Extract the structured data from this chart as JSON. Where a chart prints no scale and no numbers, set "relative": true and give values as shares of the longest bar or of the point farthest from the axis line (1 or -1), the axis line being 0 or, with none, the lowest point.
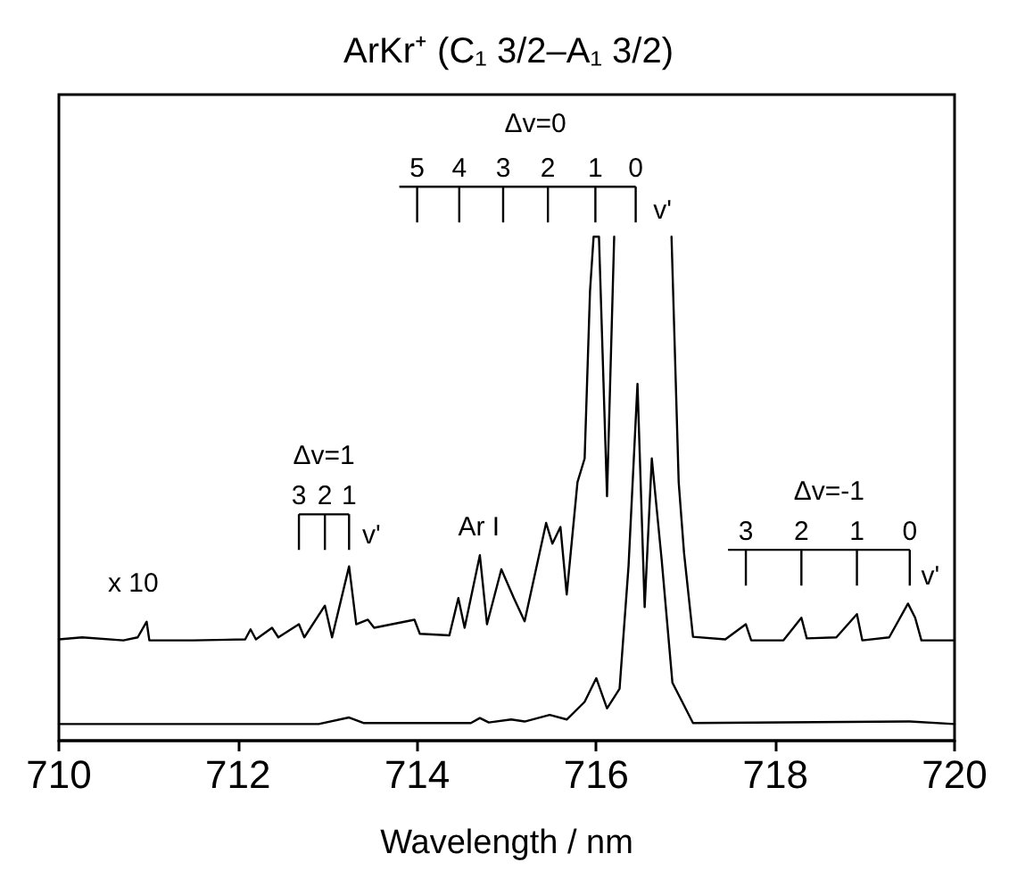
{
  "chart_data": {
    "type": "line",
    "title": "ArKr⁺ (C₁ 3/2–A₁ 3/2)",
    "xlabel": "Wavelength / nm",
    "xlim": [
      710,
      720
    ],
    "xticks": [
      710,
      712,
      714,
      716,
      718,
      720
    ],
    "relative": true,
    "grid": false,
    "marker": "none",
    "line_style": "solid",
    "series": [
      {
        "color": "#000000",
        "x": [
          710,
          710.26,
          710.72,
          710.88,
          710.98,
          711.01,
          711.5,
          712.08,
          712.14,
          712.2,
          712.38,
          712.45,
          712.68,
          712.74,
          712.97,
          713.05,
          713.24,
          713.32,
          713.45,
          713.52,
          713.97,
          714.03,
          714.36,
          714.46,
          714.53,
          714.7,
          714.78,
          714.94,
          715.08,
          715.2,
          715.44,
          715.51,
          715.6,
          715.67,
          715.79,
          715.87,
          715.93,
          715.97,
          716.03,
          716.12,
          716.2,
          716.8,
          716.84,
          716.92,
          716.98,
          717.08,
          717.44,
          717.67,
          717.73,
          718.09,
          718.29,
          718.35,
          718.68,
          718.91,
          718.97,
          719.27,
          719.48,
          719.56,
          719.63,
          720
        ],
        "values": [
          0.201,
          0.205,
          0.199,
          0.205,
          0.236,
          0.199,
          0.199,
          0.201,
          0.221,
          0.201,
          0.224,
          0.205,
          0.231,
          0.205,
          0.268,
          0.205,
          0.346,
          0.231,
          0.24,
          0.224,
          0.24,
          0.212,
          0.209,
          0.283,
          0.224,
          0.368,
          0.231,
          0.34,
          0.283,
          0.237,
          0.432,
          0.391,
          0.424,
          0.29,
          0.513,
          0.56,
          0.892,
          1,
          1,
          0.485,
          1,
          null,
          1,
          0.513,
          0.372,
          0.206,
          0.201,
          0.231,
          0.199,
          0.199,
          0.244,
          0.203,
          0.205,
          0.251,
          0.199,
          0.205,
          0.272,
          0.244,
          0.199,
          0.199
        ]
      },
      {
        "color": "#000000",
        "x": [
          710,
          712.9,
          713.24,
          713.4,
          714.6,
          714.7,
          714.8,
          715.05,
          715.2,
          715.48,
          715.67,
          715.87,
          716.0,
          716.12,
          716.26,
          716.36,
          716.46,
          716.54,
          716.62,
          716.73,
          716.85,
          717.08,
          719.5,
          720
        ],
        "values": [
          0.033,
          0.033,
          0.046,
          0.035,
          0.035,
          0.045,
          0.036,
          0.042,
          0.038,
          0.051,
          0.042,
          0.077,
          0.124,
          0.064,
          0.103,
          0.346,
          0.708,
          0.265,
          0.56,
          0.359,
          0.115,
          0.035,
          0.038,
          0.033
        ]
      }
    ],
    "annotations": [
      "x 10",
      "Δv=1",
      "3",
      "2",
      "1",
      "v'",
      "Ar I",
      "Δv=0",
      "5",
      "4",
      "3",
      "2",
      "1",
      "0",
      "v'",
      "Δv=-1",
      "3",
      "2",
      "1",
      "0",
      "v'"
    ]
  }
}
